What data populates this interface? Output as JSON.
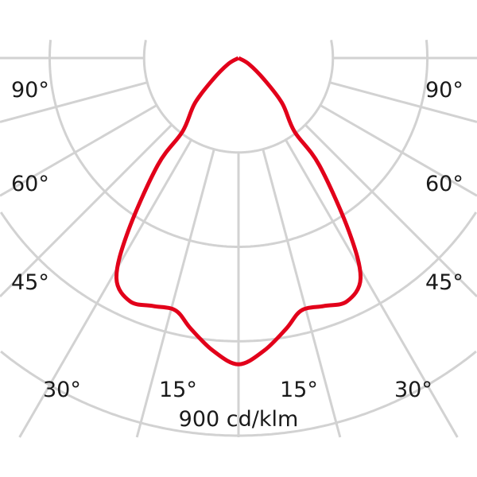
{
  "chart_data": {
    "type": "polar",
    "unit_label": "900 cd/klm",
    "angle_labels_left": [
      "90°",
      "60°",
      "45°",
      "30°",
      "15°"
    ],
    "angle_labels_right": [
      "15°",
      "30°",
      "45°",
      "60°",
      "90°"
    ],
    "radial_gridlines_deg": [
      0,
      15,
      30,
      45,
      60,
      75,
      90
    ],
    "ring_max_value": 900,
    "ring_count": 4,
    "grid": true,
    "series": [
      {
        "symmetric": true,
        "points_angle_deg_value_cd_klm": [
          [
            0,
            730
          ],
          [
            5,
            700
          ],
          [
            10,
            655
          ],
          [
            14,
            620
          ],
          [
            19,
            625
          ],
          [
            24,
            635
          ],
          [
            29,
            600
          ],
          [
            32.5,
            490
          ],
          [
            37,
            320
          ],
          [
            37.3,
            220
          ],
          [
            44,
            150
          ],
          [
            50,
            80
          ],
          [
            60,
            28
          ],
          [
            90,
            0
          ]
        ]
      }
    ],
    "colors": {
      "curve": "#e2001a",
      "grid": "#d2d2d2",
      "text": "#1a1a1a"
    }
  }
}
